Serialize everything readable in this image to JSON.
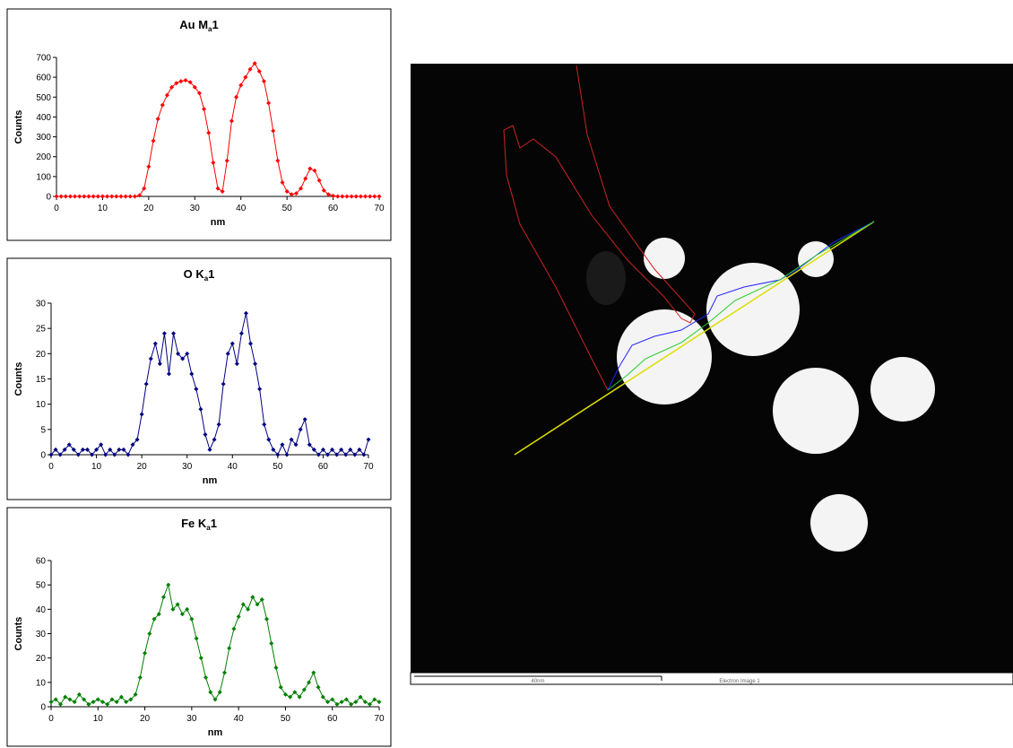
{
  "chart_data": [
    {
      "type": "line",
      "title": [
        "Au M",
        "a",
        "1"
      ],
      "x_label": "nm",
      "y_label": "Counts",
      "xlim": [
        0,
        70
      ],
      "xticks": [
        0,
        10,
        20,
        30,
        40,
        50,
        60,
        70
      ],
      "ylim": [
        0,
        700
      ],
      "yticks": [
        0,
        100,
        200,
        300,
        400,
        500,
        600,
        700
      ],
      "x": [
        0,
        1,
        2,
        3,
        4,
        5,
        6,
        7,
        8,
        9,
        10,
        11,
        12,
        13,
        14,
        15,
        16,
        17,
        18,
        19,
        20,
        21,
        22,
        23,
        24,
        25,
        26,
        27,
        28,
        29,
        30,
        31,
        32,
        33,
        34,
        35,
        36,
        37,
        38,
        39,
        40,
        41,
        42,
        43,
        44,
        45,
        46,
        47,
        48,
        49,
        50,
        51,
        52,
        53,
        54,
        55,
        56,
        57,
        58,
        59,
        60,
        61,
        62,
        63,
        64,
        65,
        66,
        67,
        68,
        69,
        70
      ],
      "series": [
        {
          "color": "#ff0000",
          "values": [
            0,
            0,
            0,
            0,
            0,
            0,
            0,
            0,
            0,
            0,
            0,
            0,
            0,
            0,
            0,
            0,
            0,
            0,
            5,
            40,
            150,
            280,
            390,
            460,
            510,
            550,
            570,
            580,
            585,
            575,
            550,
            520,
            440,
            320,
            170,
            40,
            25,
            180,
            380,
            500,
            560,
            600,
            640,
            670,
            630,
            580,
            470,
            330,
            180,
            70,
            25,
            10,
            15,
            40,
            90,
            140,
            130,
            80,
            30,
            10,
            3,
            0,
            0,
            0,
            0,
            0,
            0,
            0,
            0,
            0,
            0
          ]
        }
      ]
    },
    {
      "type": "line",
      "title": [
        "O K",
        "a",
        "1"
      ],
      "x_label": "nm",
      "y_label": "Counts",
      "xlim": [
        0,
        70
      ],
      "xticks": [
        0,
        10,
        20,
        30,
        40,
        50,
        60,
        70
      ],
      "ylim": [
        0,
        30
      ],
      "yticks": [
        0,
        5,
        10,
        15,
        20,
        25,
        30
      ],
      "x": [
        0,
        1,
        2,
        3,
        4,
        5,
        6,
        7,
        8,
        9,
        10,
        11,
        12,
        13,
        14,
        15,
        16,
        17,
        18,
        19,
        20,
        21,
        22,
        23,
        24,
        25,
        26,
        27,
        28,
        29,
        30,
        31,
        32,
        33,
        34,
        35,
        36,
        37,
        38,
        39,
        40,
        41,
        42,
        43,
        44,
        45,
        46,
        47,
        48,
        49,
        50,
        51,
        52,
        53,
        54,
        55,
        56,
        57,
        58,
        59,
        60,
        61,
        62,
        63,
        64,
        65,
        66,
        67,
        68,
        69,
        70
      ],
      "series": [
        {
          "color": "#000080",
          "values": [
            0,
            1,
            0,
            1,
            2,
            1,
            0,
            1,
            1,
            0,
            1,
            2,
            0,
            1,
            0,
            1,
            1,
            0,
            2,
            3,
            8,
            14,
            19,
            22,
            18,
            24,
            16,
            24,
            20,
            19,
            20,
            16,
            13,
            9,
            4,
            1,
            3,
            6,
            14,
            20,
            22,
            18,
            24,
            28,
            22,
            18,
            13,
            6,
            3,
            1,
            0,
            2,
            0,
            3,
            2,
            5,
            7,
            2,
            1,
            0,
            1,
            0,
            1,
            0,
            1,
            0,
            1,
            0,
            1,
            0,
            3
          ]
        }
      ]
    },
    {
      "type": "line",
      "title": [
        "Fe K",
        "a",
        "1"
      ],
      "x_label": "nm",
      "y_label": "Counts",
      "xlim": [
        0,
        70
      ],
      "xticks": [
        0,
        10,
        20,
        30,
        40,
        50,
        60,
        70
      ],
      "ylim": [
        0,
        60
      ],
      "yticks": [
        0,
        10,
        20,
        30,
        40,
        50,
        60
      ],
      "x": [
        0,
        1,
        2,
        3,
        4,
        5,
        6,
        7,
        8,
        9,
        10,
        11,
        12,
        13,
        14,
        15,
        16,
        17,
        18,
        19,
        20,
        21,
        22,
        23,
        24,
        25,
        26,
        27,
        28,
        29,
        30,
        31,
        32,
        33,
        34,
        35,
        36,
        37,
        38,
        39,
        40,
        41,
        42,
        43,
        44,
        45,
        46,
        47,
        48,
        49,
        50,
        51,
        52,
        53,
        54,
        55,
        56,
        57,
        58,
        59,
        60,
        61,
        62,
        63,
        64,
        65,
        66,
        67,
        68,
        69,
        70
      ],
      "series": [
        {
          "color": "#008000",
          "values": [
            2,
            3,
            1,
            4,
            3,
            2,
            5,
            3,
            1,
            2,
            3,
            2,
            1,
            3,
            2,
            4,
            2,
            3,
            5,
            12,
            22,
            30,
            36,
            38,
            45,
            50,
            40,
            42,
            38,
            40,
            36,
            28,
            20,
            12,
            6,
            3,
            6,
            14,
            24,
            32,
            37,
            42,
            40,
            45,
            42,
            44,
            36,
            26,
            16,
            8,
            5,
            4,
            6,
            4,
            7,
            10,
            14,
            8,
            4,
            2,
            3,
            1,
            2,
            3,
            1,
            2,
            4,
            2,
            1,
            3,
            2
          ]
        }
      ]
    }
  ],
  "image": {
    "scale_label": "40nm",
    "caption": "Electron Image 1"
  }
}
